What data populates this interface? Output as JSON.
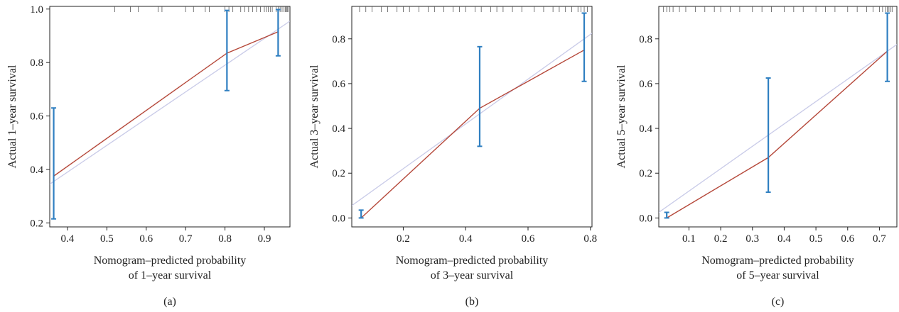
{
  "chart_data": [
    {
      "type": "line",
      "panel_label": "(a)",
      "xlabel_lines": [
        "Nomogram–predicted probability",
        "of 1–year survival"
      ],
      "ylabel": "Actual 1–year survival",
      "xlim": [
        0.355,
        0.965
      ],
      "ylim": [
        0.185,
        1.01
      ],
      "xticks": [
        0.4,
        0.5,
        0.6,
        0.7,
        0.8,
        0.9
      ],
      "yticks": [
        0.2,
        0.4,
        0.6,
        0.8,
        1.0
      ],
      "ytick_labels": [
        "0.2",
        "0.4",
        "0.6",
        "0.8",
        "1.0"
      ],
      "ideal_line": {
        "x": [
          0.355,
          0.965
        ],
        "y": [
          0.345,
          0.955
        ]
      },
      "calibration": {
        "x": [
          0.365,
          0.805,
          0.935
        ],
        "y": [
          0.375,
          0.835,
          0.915
        ]
      },
      "error_bars": [
        {
          "x": 0.365,
          "low": 0.215,
          "high": 0.63
        },
        {
          "x": 0.805,
          "low": 0.695,
          "high": 0.995
        },
        {
          "x": 0.935,
          "low": 0.825,
          "high": 0.998
        }
      ],
      "rug": [
        0.52,
        0.56,
        0.58,
        0.63,
        0.64,
        0.7,
        0.72,
        0.75,
        0.76,
        0.8,
        0.81,
        0.82,
        0.84,
        0.85,
        0.86,
        0.87,
        0.88,
        0.89,
        0.9,
        0.905,
        0.91,
        0.915,
        0.92,
        0.93,
        0.935,
        0.94,
        0.945,
        0.95,
        0.953,
        0.956,
        0.958,
        0.96
      ]
    },
    {
      "type": "line",
      "panel_label": "(b)",
      "xlabel_lines": [
        "Nomogram–predicted probability",
        "of 3–year survival"
      ],
      "ylabel": "Actual 3–year survival",
      "xlim": [
        0.035,
        0.805
      ],
      "ylim": [
        -0.04,
        0.945
      ],
      "xticks": [
        0.2,
        0.4,
        0.6,
        0.8
      ],
      "yticks": [
        0.0,
        0.2,
        0.4,
        0.6,
        0.8
      ],
      "ytick_labels": [
        "0.0",
        "0.2",
        "0.4",
        "0.6",
        "0.8"
      ],
      "ideal_line": {
        "x": [
          0.035,
          0.805
        ],
        "y": [
          0.055,
          0.825
        ]
      },
      "calibration": {
        "x": [
          0.065,
          0.445,
          0.78
        ],
        "y": [
          0.0,
          0.49,
          0.75
        ]
      },
      "error_bars": [
        {
          "x": 0.065,
          "low": 0.0,
          "high": 0.035
        },
        {
          "x": 0.445,
          "low": 0.32,
          "high": 0.765
        },
        {
          "x": 0.78,
          "low": 0.61,
          "high": 0.915
        }
      ],
      "rug": [
        0.06,
        0.08,
        0.1,
        0.13,
        0.15,
        0.18,
        0.2,
        0.22,
        0.25,
        0.28,
        0.3,
        0.33,
        0.36,
        0.38,
        0.4,
        0.43,
        0.45,
        0.48,
        0.5,
        0.52,
        0.55,
        0.58,
        0.62,
        0.65,
        0.68,
        0.7,
        0.72,
        0.74,
        0.76,
        0.77,
        0.78,
        0.79
      ]
    },
    {
      "type": "line",
      "panel_label": "(c)",
      "xlabel_lines": [
        "Nomogram–predicted probability",
        "of 5–year survival"
      ],
      "ylabel": "Actual 5–year survival",
      "xlim": [
        0.005,
        0.755
      ],
      "ylim": [
        -0.04,
        0.945
      ],
      "xticks": [
        0.1,
        0.2,
        0.3,
        0.4,
        0.5,
        0.6,
        0.7
      ],
      "yticks": [
        0.0,
        0.2,
        0.4,
        0.6,
        0.8
      ],
      "ytick_labels": [
        "0.0",
        "0.2",
        "0.4",
        "0.6",
        "0.8"
      ],
      "ideal_line": {
        "x": [
          0.005,
          0.755
        ],
        "y": [
          0.025,
          0.775
        ]
      },
      "calibration": {
        "x": [
          0.03,
          0.35,
          0.725
        ],
        "y": [
          0.0,
          0.27,
          0.745
        ]
      },
      "error_bars": [
        {
          "x": 0.03,
          "low": 0.0,
          "high": 0.025
        },
        {
          "x": 0.35,
          "low": 0.115,
          "high": 0.625
        },
        {
          "x": 0.725,
          "low": 0.61,
          "high": 0.915
        }
      ],
      "rug": [
        0.02,
        0.03,
        0.04,
        0.05,
        0.07,
        0.09,
        0.12,
        0.15,
        0.18,
        0.2,
        0.23,
        0.26,
        0.3,
        0.33,
        0.36,
        0.4,
        0.43,
        0.46,
        0.5,
        0.53,
        0.56,
        0.6,
        0.63,
        0.66,
        0.68,
        0.7,
        0.71,
        0.72,
        0.725,
        0.73,
        0.735,
        0.74
      ]
    }
  ],
  "colors": {
    "calibration_line": "#b5483a",
    "ideal_line": "#c9cbe8",
    "error_bar": "#2f7fc1",
    "axis": "#222222",
    "rug": "#555555"
  }
}
